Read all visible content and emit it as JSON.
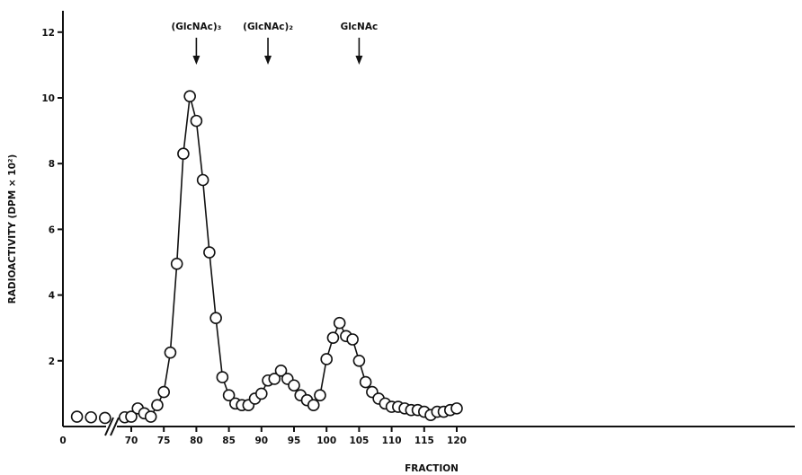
{
  "chart_data": {
    "type": "line",
    "xlabel": "FRACTION",
    "ylabel": "RADIOACTIVITY (DPM × 10²)",
    "x_axis_break": true,
    "xticks_left": [
      "0"
    ],
    "xticks": [
      70,
      75,
      80,
      85,
      90,
      95,
      100,
      105,
      110,
      115,
      120
    ],
    "yticks": [
      2,
      4,
      6,
      8,
      10,
      12
    ],
    "xlim": [
      0,
      120
    ],
    "ylim": [
      0,
      12.5
    ],
    "grid": false,
    "markers": [
      {
        "label": "(GlcNAc)₃",
        "x": 80
      },
      {
        "label": "(GlcNAc)₂",
        "x": 91
      },
      {
        "label": "GlcNAc",
        "x": 105
      }
    ],
    "series": [
      {
        "marker": "open-circle",
        "points_pre_break": [
          [
            1,
            0.3
          ],
          [
            2,
            0.28
          ],
          [
            3,
            0.26
          ]
        ],
        "x": [
          69,
          70,
          71,
          72,
          73,
          74,
          75,
          76,
          77,
          78,
          79,
          80,
          81,
          82,
          83,
          84,
          85,
          86,
          87,
          88,
          89,
          90,
          91,
          92,
          93,
          94,
          95,
          96,
          97,
          98,
          99,
          100,
          101,
          102,
          103,
          104,
          105,
          106,
          107,
          108,
          109,
          110,
          111,
          112,
          113,
          114,
          115,
          116,
          117,
          118,
          119,
          120
        ],
        "y": [
          0.28,
          0.3,
          0.55,
          0.4,
          0.3,
          0.65,
          1.05,
          2.25,
          4.95,
          8.3,
          10.05,
          9.3,
          7.5,
          5.3,
          3.3,
          1.5,
          0.95,
          0.7,
          0.65,
          0.65,
          0.85,
          1.0,
          1.4,
          1.45,
          1.7,
          1.45,
          1.25,
          0.95,
          0.8,
          0.65,
          0.95,
          2.05,
          2.7,
          3.15,
          2.75,
          2.65,
          2.0,
          1.35,
          1.05,
          0.85,
          0.7,
          0.6,
          0.6,
          0.55,
          0.5,
          0.5,
          0.45,
          0.35,
          0.45,
          0.45,
          0.5,
          0.55
        ]
      }
    ]
  }
}
